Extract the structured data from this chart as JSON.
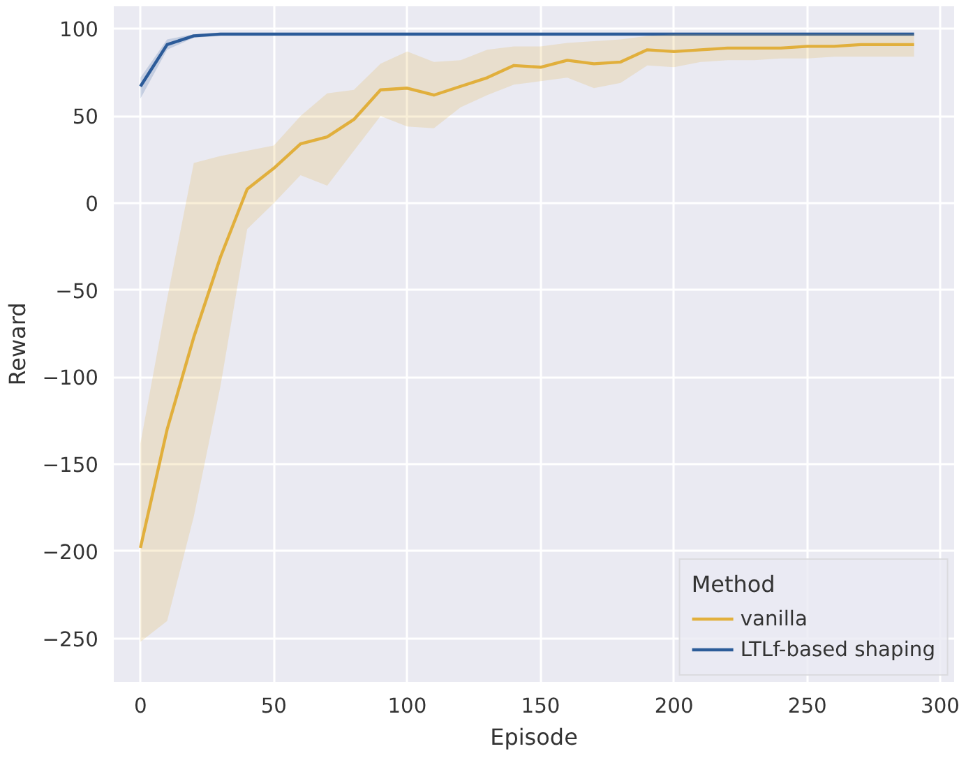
{
  "chart_data": {
    "type": "line",
    "xlabel": "Episode",
    "ylabel": "Reward",
    "legend_title": "Method",
    "legend": "bottom right",
    "grid": true,
    "marker": "none",
    "line_style": "solid",
    "xlim": [
      -10,
      305
    ],
    "ylim": [
      -275,
      113
    ],
    "xticks": [
      0,
      50,
      100,
      150,
      200,
      250,
      300
    ],
    "yticks": [
      -250,
      -200,
      -150,
      -100,
      -50,
      0,
      50,
      100
    ],
    "series": [
      {
        "name": "vanilla",
        "color": "#e2b03c",
        "x": [
          0,
          10,
          20,
          30,
          40,
          50,
          60,
          70,
          80,
          90,
          100,
          110,
          120,
          130,
          140,
          150,
          160,
          170,
          180,
          190,
          200,
          210,
          220,
          230,
          240,
          250,
          260,
          270,
          280,
          290
        ],
        "values": [
          -198,
          -130,
          -77,
          -31,
          8,
          20,
          34,
          38,
          48,
          65,
          66,
          62,
          67,
          72,
          79,
          78,
          82,
          80,
          81,
          88,
          87,
          88,
          89,
          89,
          89,
          90,
          90,
          91,
          91,
          91
        ],
        "lower": [
          -252,
          -240,
          -180,
          -105,
          -15,
          0,
          16,
          10,
          30,
          50,
          44,
          43,
          55,
          62,
          68,
          70,
          72,
          66,
          69,
          79,
          78,
          81,
          82,
          82,
          83,
          83,
          84,
          84,
          84,
          84
        ],
        "upper": [
          -138,
          -55,
          23,
          27,
          30,
          33,
          50,
          63,
          65,
          80,
          87,
          81,
          82,
          88,
          90,
          90,
          92,
          93,
          94,
          96,
          97,
          97,
          97,
          97,
          97,
          97,
          97,
          97,
          97,
          97
        ]
      },
      {
        "name": "LTLf-based shaping",
        "color": "#2c5c99",
        "x": [
          0,
          10,
          20,
          30,
          40,
          50,
          60,
          70,
          80,
          90,
          100,
          110,
          120,
          130,
          140,
          150,
          160,
          170,
          180,
          190,
          200,
          210,
          220,
          230,
          240,
          250,
          260,
          270,
          280,
          290
        ],
        "values": [
          67,
          91,
          96,
          97,
          97,
          97,
          97,
          97,
          97,
          97,
          97,
          97,
          97,
          97,
          97,
          97,
          97,
          97,
          97,
          97,
          97,
          97,
          97,
          97,
          97,
          97,
          97,
          97,
          97,
          97
        ],
        "lower": [
          60,
          88,
          95,
          96,
          96,
          96,
          96,
          96,
          96,
          96,
          96,
          96,
          96,
          96,
          96,
          96,
          96,
          96,
          96,
          96,
          96,
          96,
          96,
          96,
          96,
          96,
          96,
          96,
          96,
          96
        ],
        "upper": [
          72,
          94,
          97,
          98,
          98,
          98,
          98,
          98,
          98,
          98,
          98,
          98,
          98,
          98,
          98,
          98,
          98,
          98,
          98,
          98,
          98,
          98,
          98,
          98,
          98,
          98,
          98,
          98,
          98,
          98
        ]
      }
    ]
  }
}
